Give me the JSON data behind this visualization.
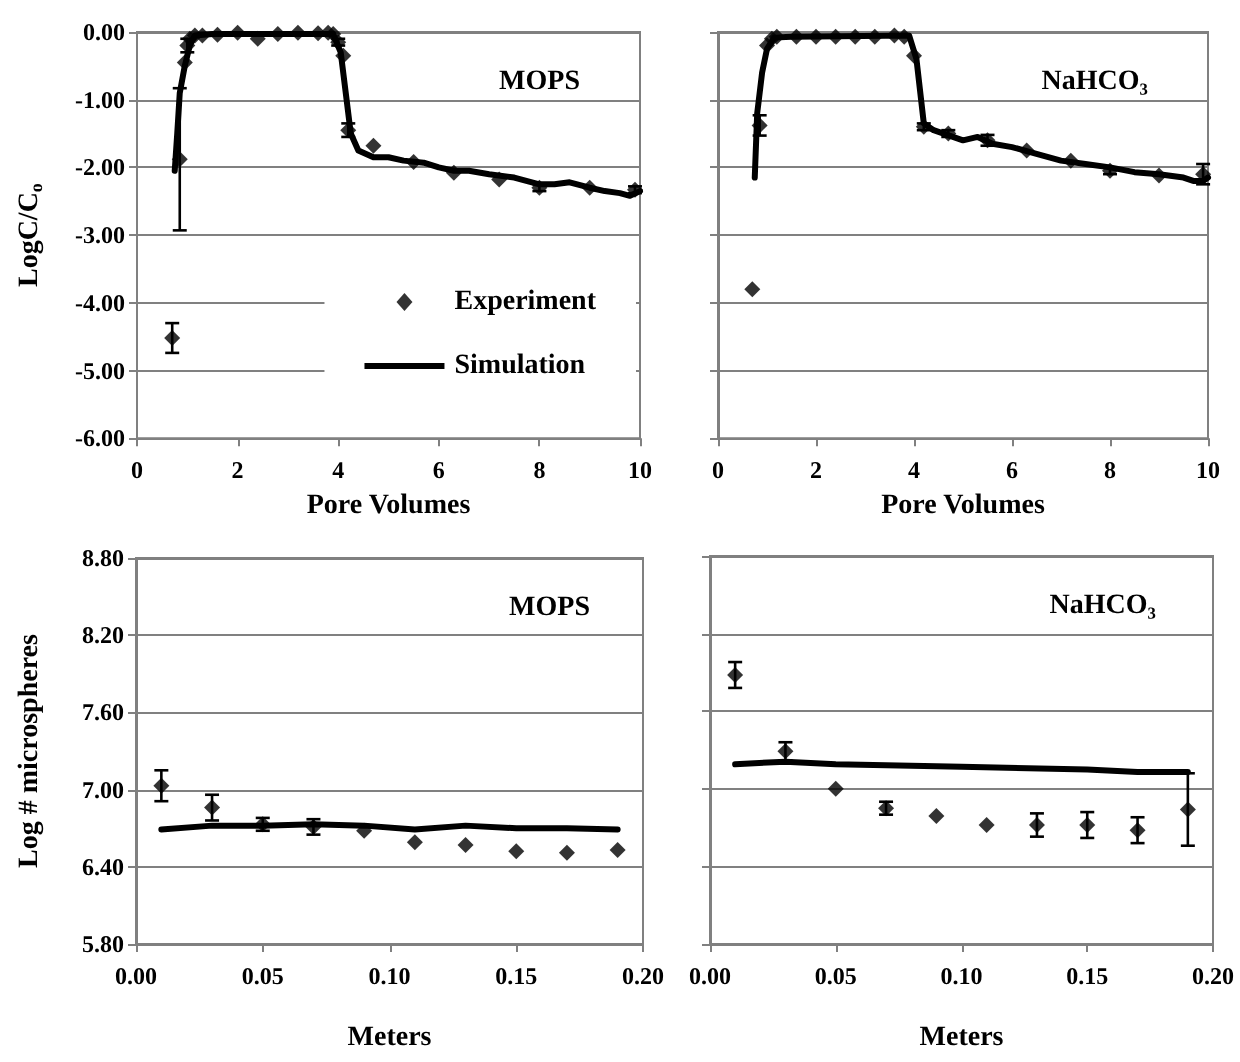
{
  "chart_data": [
    {
      "type": "scatter",
      "xlabel": "Pore Volumes",
      "ylabel": "LogC/C$_{o}$",
      "annotations": [
        "MOPS"
      ],
      "xlim": [
        0,
        10
      ],
      "xticks": [
        0,
        2,
        4,
        6,
        8,
        10
      ],
      "ylim": [
        -6,
        0
      ],
      "yticks": [
        {
          "value": -6,
          "label": "-6.00"
        },
        {
          "value": -5,
          "label": "-5.00"
        },
        {
          "value": -4,
          "label": "-4.00"
        },
        {
          "value": -3,
          "label": "-3.00"
        },
        {
          "value": -2,
          "label": "-2.00"
        },
        {
          "value": -1,
          "label": "-1.00"
        },
        {
          "value": 0,
          "label": "0.00"
        }
      ],
      "grid": "y",
      "legend": "bottom right",
      "series": [
        {
          "name": "Experiment",
          "type": "scatter",
          "marker": "diamond",
          "color": "#000000",
          "x": [
            0.7,
            0.85,
            0.95,
            1.0,
            1.05,
            1.15,
            1.3,
            1.6,
            2.0,
            2.4,
            2.8,
            3.2,
            3.6,
            3.8,
            3.9,
            4.0,
            4.1,
            4.2,
            4.7,
            5.5,
            6.3,
            7.2,
            8.0,
            9.0,
            9.9
          ],
          "values": [
            -4.52,
            -1.88,
            -0.45,
            -0.2,
            -0.1,
            -0.05,
            -0.05,
            -0.04,
            -0.01,
            -0.1,
            -0.03,
            -0.01,
            -0.02,
            -0.01,
            -0.03,
            -0.15,
            -0.35,
            -1.45,
            -1.68,
            -1.92,
            -2.08,
            -2.18,
            -2.3,
            -2.3,
            -2.33
          ],
          "errors": [
            0.22,
            1.05,
            null,
            0.1,
            null,
            null,
            null,
            null,
            null,
            null,
            null,
            null,
            null,
            null,
            null,
            0.05,
            null,
            0.1,
            null,
            null,
            null,
            null,
            0.05,
            null,
            0.05
          ]
        },
        {
          "name": "Simulation",
          "type": "line",
          "marker": "none",
          "color": "#000000",
          "x": [
            0.75,
            0.8,
            0.85,
            0.95,
            1.05,
            1.15,
            1.5,
            3.9,
            4.05,
            4.15,
            4.25,
            4.4,
            4.7,
            5.0,
            5.3,
            5.7,
            6.0,
            6.3,
            6.6,
            7.0,
            7.5,
            8.0,
            8.3,
            8.6,
            9.0,
            9.3,
            9.6,
            9.8,
            10
          ],
          "values": [
            -2.05,
            -1.5,
            -0.9,
            -0.5,
            -0.2,
            -0.05,
            -0.03,
            -0.03,
            -0.3,
            -0.9,
            -1.5,
            -1.75,
            -1.85,
            -1.85,
            -1.9,
            -1.93,
            -2.0,
            -2.05,
            -2.05,
            -2.1,
            -2.15,
            -2.25,
            -2.25,
            -2.22,
            -2.3,
            -2.35,
            -2.38,
            -2.42,
            -2.35
          ]
        }
      ]
    },
    {
      "type": "scatter",
      "xlabel": "Pore Volumes",
      "annotations": [
        "NaHCO₃"
      ],
      "xlim": [
        0,
        10
      ],
      "xticks": [
        0,
        2,
        4,
        6,
        8,
        10
      ],
      "ylim": [
        -6,
        0
      ],
      "yticks": [
        {
          "value": -6,
          "label": null
        },
        {
          "value": -5,
          "label": null
        },
        {
          "value": -4,
          "label": null
        },
        {
          "value": -3,
          "label": null
        },
        {
          "value": -2,
          "label": null
        },
        {
          "value": -1,
          "label": null
        },
        {
          "value": 0,
          "label": null
        }
      ],
      "grid": "y",
      "tick_labels": "x",
      "series": [
        {
          "type": "scatter",
          "marker": "diamond",
          "color": "#000000",
          "x": [
            0.7,
            0.85,
            1.0,
            1.1,
            1.2,
            1.6,
            2.0,
            2.4,
            2.8,
            3.2,
            3.6,
            3.8,
            4.0,
            4.2,
            4.7,
            5.5,
            6.3,
            7.2,
            8.0,
            9.0,
            9.9
          ],
          "values": [
            -3.8,
            -1.38,
            -0.2,
            -0.1,
            -0.07,
            -0.07,
            -0.07,
            -0.07,
            -0.07,
            -0.07,
            -0.05,
            -0.07,
            -0.35,
            -1.4,
            -1.5,
            -1.6,
            -1.75,
            -1.9,
            -2.05,
            -2.12,
            -2.1
          ],
          "errors": [
            null,
            0.15,
            null,
            null,
            null,
            null,
            null,
            null,
            null,
            null,
            null,
            null,
            null,
            0.05,
            0.05,
            0.08,
            null,
            null,
            0.05,
            null,
            0.15
          ]
        },
        {
          "type": "line",
          "marker": "none",
          "color": "#000000",
          "x": [
            0.75,
            0.8,
            0.9,
            1.0,
            1.15,
            1.5,
            3.9,
            4.05,
            4.2,
            4.4,
            5.0,
            5.3,
            5.6,
            6.0,
            6.5,
            7.0,
            7.5,
            8.0,
            8.5,
            9.0,
            9.5,
            9.7,
            9.9,
            10
          ],
          "values": [
            -2.15,
            -1.2,
            -0.6,
            -0.25,
            -0.08,
            -0.07,
            -0.05,
            -0.4,
            -1.35,
            -1.45,
            -1.6,
            -1.55,
            -1.65,
            -1.7,
            -1.8,
            -1.9,
            -1.95,
            -2.0,
            -2.07,
            -2.1,
            -2.15,
            -2.2,
            -2.2,
            -2.15
          ]
        }
      ]
    },
    {
      "type": "scatter",
      "xlabel": "Meters",
      "ylabel": "Log # microspheres",
      "annotations": [
        "MOPS"
      ],
      "xlim": [
        0,
        0.2
      ],
      "xticks": [
        {
          "value": 0,
          "label": "0.00"
        },
        {
          "value": 0.05,
          "label": "0.05"
        },
        {
          "value": 0.1,
          "label": "0.10"
        },
        {
          "value": 0.15,
          "label": "0.15"
        },
        {
          "value": 0.2,
          "label": "0.20"
        }
      ],
      "ylim": [
        5.8,
        8.8
      ],
      "yticks": [
        {
          "value": 5.8,
          "label": "5.80"
        },
        {
          "value": 6.4,
          "label": "6.40"
        },
        {
          "value": 7.0,
          "label": "7.00"
        },
        {
          "value": 7.6,
          "label": "7.60"
        },
        {
          "value": 8.2,
          "label": "8.20"
        },
        {
          "value": 8.8,
          "label": "8.80"
        }
      ],
      "grid": "y",
      "series": [
        {
          "type": "scatter",
          "marker": "diamond",
          "color": "#000000",
          "x": [
            0.01,
            0.03,
            0.05,
            0.07,
            0.09,
            0.11,
            0.13,
            0.15,
            0.17,
            0.19
          ],
          "values": [
            7.03,
            6.86,
            6.73,
            6.71,
            6.68,
            6.59,
            6.57,
            6.52,
            6.51,
            6.53
          ],
          "errors": [
            0.12,
            0.1,
            0.05,
            0.06,
            null,
            null,
            null,
            null,
            null,
            null
          ]
        },
        {
          "type": "line",
          "marker": "none",
          "color": "#000000",
          "x": [
            0.01,
            0.03,
            0.05,
            0.07,
            0.09,
            0.11,
            0.13,
            0.15,
            0.17,
            0.19
          ],
          "values": [
            6.69,
            6.72,
            6.72,
            6.73,
            6.72,
            6.69,
            6.72,
            6.7,
            6.7,
            6.69
          ]
        }
      ]
    },
    {
      "type": "scatter",
      "xlabel": "Meters",
      "annotations": [
        "NaHCO₃"
      ],
      "xlim": [
        0,
        0.2
      ],
      "xticks": [
        {
          "value": 0,
          "label": "0.00"
        },
        {
          "value": 0.05,
          "label": "0.05"
        },
        {
          "value": 0.1,
          "label": "0.10"
        },
        {
          "value": 0.15,
          "label": "0.15"
        },
        {
          "value": 0.2,
          "label": "0.20"
        }
      ],
      "ylim": [
        5.8,
        8.8
      ],
      "yticks": [
        {
          "value": 5.8,
          "label": null
        },
        {
          "value": 6.4,
          "label": null
        },
        {
          "value": 7.0,
          "label": null
        },
        {
          "value": 7.6,
          "label": null
        },
        {
          "value": 8.2,
          "label": null
        },
        {
          "value": 8.8,
          "label": null
        }
      ],
      "grid": "y",
      "tick_labels": "x",
      "series": [
        {
          "type": "scatter",
          "marker": "diamond",
          "color": "#000000",
          "x": [
            0.01,
            0.03,
            0.05,
            0.07,
            0.09,
            0.11,
            0.13,
            0.15,
            0.17,
            0.19
          ],
          "values": [
            7.88,
            7.29,
            7.0,
            6.85,
            6.79,
            6.72,
            6.72,
            6.72,
            6.68,
            6.84
          ],
          "errors": [
            0.1,
            0.07,
            null,
            0.05,
            null,
            null,
            0.09,
            0.1,
            0.1,
            0.28
          ]
        },
        {
          "type": "line",
          "marker": "none",
          "color": "#000000",
          "x": [
            0.01,
            0.03,
            0.05,
            0.1,
            0.15,
            0.17,
            0.19
          ],
          "values": [
            7.19,
            7.21,
            7.19,
            7.17,
            7.15,
            7.13,
            7.13
          ]
        }
      ]
    }
  ]
}
